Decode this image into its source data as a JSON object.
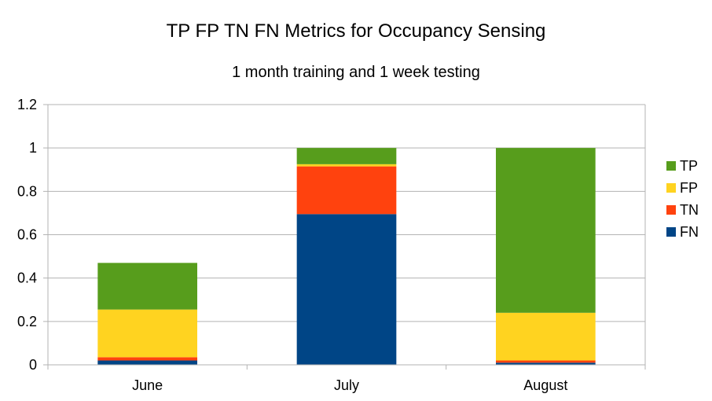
{
  "chart_data": {
    "type": "bar",
    "stacked": true,
    "title": "TP FP TN FN Metrics for Occupancy Sensing",
    "subtitle": "1 month training and 1 week testing",
    "xlabel": "",
    "ylabel": "",
    "categories": [
      "June",
      "July",
      "August"
    ],
    "ylim": [
      0,
      1.2
    ],
    "yticks": [
      "0",
      "0.2",
      "0.4",
      "0.6",
      "0.8",
      "1",
      "1.2"
    ],
    "grid": true,
    "legend_position": "right",
    "series": [
      {
        "name": "FN",
        "color": "#004586",
        "values": [
          0.02,
          0.695,
          0.01
        ]
      },
      {
        "name": "TN",
        "color": "#ff420e",
        "values": [
          0.015,
          0.22,
          0.01
        ]
      },
      {
        "name": "FP",
        "color": "#ffd320",
        "values": [
          0.22,
          0.01,
          0.22
        ]
      },
      {
        "name": "TP",
        "color": "#579d1c",
        "values": [
          0.215,
          0.075,
          0.76
        ]
      }
    ],
    "legend_order": [
      "TP",
      "FP",
      "TN",
      "FN"
    ]
  }
}
